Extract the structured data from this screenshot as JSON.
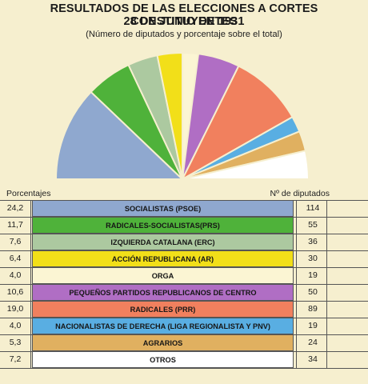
{
  "title_line1": "RESULTADOS DE LAS ELECCIONES A CORTES CONSTITUYENTES",
  "title_line2": "28 DE JUNIO DE 1931",
  "subtitle": "(Número de diputados y porcentaje sobre el total)",
  "left_header": "Porcentajes",
  "right_header": "Nº de diputados",
  "chart_data": {
    "type": "pie",
    "subtype": "semicircle-parliament",
    "title": "RESULTADOS DE LAS ELECCIONES A CORTES CONSTITUYENTES",
    "subtitle": "28 DE JUNIO DE 1931",
    "legend": "table-below",
    "parties": [
      {
        "name": "SOCIALISTAS (PSOE)",
        "percent": 24.2,
        "seats": 114,
        "color": "#8fa8cf"
      },
      {
        "name": "RADICALES-SOCIALISTAS(PRS)",
        "percent": 11.7,
        "seats": 55,
        "color": "#4fb23a"
      },
      {
        "name": "IZQUIERDA CATALANA (ERC)",
        "percent": 7.6,
        "seats": 36,
        "color": "#acc9a0"
      },
      {
        "name": "ACCIÓN REPUBLICANA (AR)",
        "percent": 6.4,
        "seats": 30,
        "color": "#f2df19"
      },
      {
        "name": "ORGA",
        "percent": 4.0,
        "seats": 19,
        "color": "#fbf5d3"
      },
      {
        "name": "PEQUEÑOS PARTIDOS REPUBLICANOS DE CENTRO",
        "percent": 10.6,
        "seats": 50,
        "color": "#b06ec4"
      },
      {
        "name": "RADICALES (PRR)",
        "percent": 19.0,
        "seats": 89,
        "color": "#f1805e"
      },
      {
        "name": "NACIONALISTAS DE DERECHA (LIGA REGIONALISTA Y PNV)",
        "percent": 4.0,
        "seats": 19,
        "color": "#59aee2"
      },
      {
        "name": "AGRARIOS",
        "percent": 5.3,
        "seats": 24,
        "color": "#e0b060"
      },
      {
        "name": "OTROS",
        "percent": 7.2,
        "seats": 34,
        "color": "#ffffff"
      }
    ]
  }
}
